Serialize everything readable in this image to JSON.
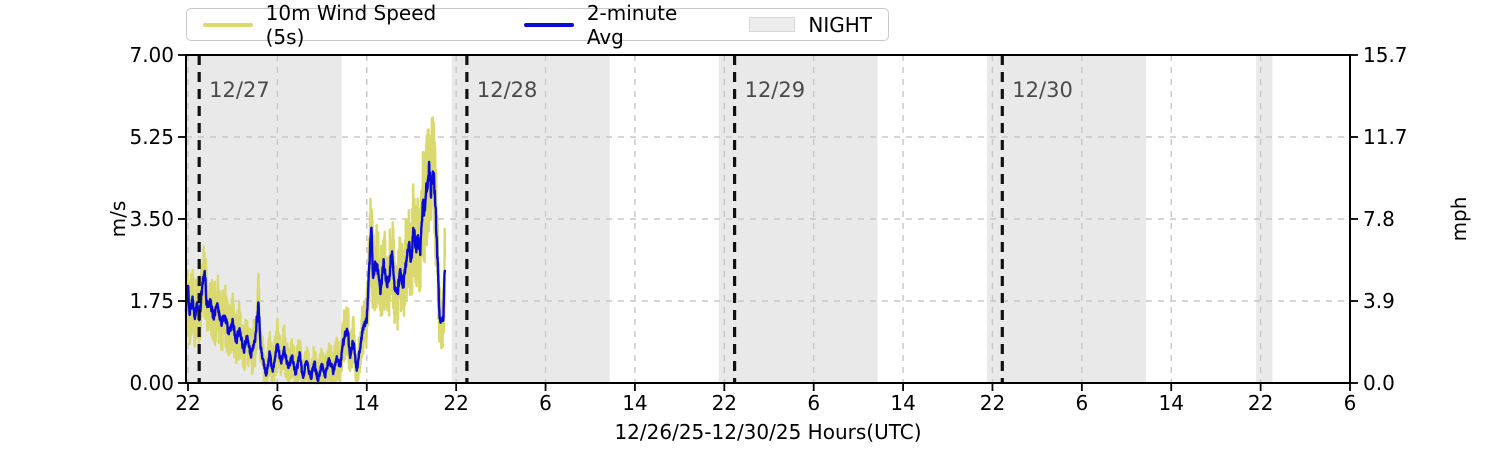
{
  "colors": {
    "raw_line": "#d9d96f",
    "avg_line": "#0b0bd8",
    "night_band": "#e9e9e9",
    "grid": "#c7c7c7",
    "date_line": "#111111",
    "date_label": "#4a4a4a",
    "axis": "#000000",
    "tick_label": "#000000",
    "legend_border": "#c9c9c9",
    "night_patch_fill": "#ececec",
    "night_patch_border": "#d8d8d8"
  },
  "legend": {
    "items": [
      {
        "label": "10m Wind Speed (5s)",
        "swatch": "line"
      },
      {
        "label": "2-minute Avg",
        "swatch": "line"
      },
      {
        "label": "NIGHT",
        "swatch": "patch"
      }
    ]
  },
  "chart_data": {
    "type": "line",
    "xlabel": "12/26/25-12/30/25  Hours(UTC)",
    "ylabel_left": "m/s",
    "ylabel_right": "mph",
    "x_unit": "hours since 12/26/25 00:00 UTC",
    "xlim": [
      21.82,
      126.0
    ],
    "ylim_left": [
      0,
      7.0
    ],
    "ylim_right": [
      0,
      15.7
    ],
    "grid": "dashed",
    "legend_position": "top-left-above-axes",
    "xticks": {
      "values": [
        22,
        30,
        38,
        46,
        54,
        62,
        70,
        78,
        86,
        94,
        102,
        110,
        118,
        126
      ],
      "labels": [
        "22",
        "6",
        "14",
        "22",
        "6",
        "14",
        "22",
        "6",
        "14",
        "22",
        "6",
        "14",
        "22",
        "6"
      ]
    },
    "yticks_left": {
      "values": [
        0,
        1.75,
        3.5,
        5.25,
        7.0
      ],
      "labels": [
        "0.00",
        "1.75",
        "3.50",
        "5.25",
        "7.00"
      ]
    },
    "yticks_right": {
      "values": [
        0,
        1.75,
        3.5,
        5.25,
        7.0
      ],
      "labels": [
        "0.0",
        "3.9",
        "7.8",
        "11.7",
        "15.7"
      ]
    },
    "hgrid_values": [
      1.75,
      3.5,
      5.25
    ],
    "night_bands": [
      [
        21.82,
        35.75
      ],
      [
        45.6,
        59.75
      ],
      [
        69.5,
        83.72
      ],
      [
        93.5,
        107.75
      ],
      [
        117.6,
        119.05
      ]
    ],
    "day_lines": [
      {
        "t": 23.0,
        "label": "12/27"
      },
      {
        "t": 46.96,
        "label": "12/28"
      },
      {
        "t": 70.92,
        "label": "12/29"
      },
      {
        "t": 94.88,
        "label": "12/30"
      }
    ],
    "series": [
      {
        "name": "10m Wind Speed (5s)",
        "role": "raw",
        "derived_from": "avg_keypoints",
        "noise_amp_base": 0.35,
        "noise_amp_per_value": 0.22,
        "seed": 11,
        "max_observed": 5.8
      },
      {
        "name": "2-minute Avg",
        "role": "avg",
        "noise_amp_base": 0.08,
        "noise_amp_per_value": 0.04,
        "seed": 3,
        "keypoints": [
          [
            21.82,
            1.6
          ],
          [
            22.0,
            2.05
          ],
          [
            22.15,
            1.45
          ],
          [
            22.4,
            1.85
          ],
          [
            22.6,
            1.35
          ],
          [
            22.8,
            1.75
          ],
          [
            23.0,
            1.35
          ],
          [
            23.3,
            2.1
          ],
          [
            23.5,
            2.4
          ],
          [
            23.7,
            1.6
          ],
          [
            24.0,
            1.75
          ],
          [
            24.3,
            1.35
          ],
          [
            24.6,
            1.7
          ],
          [
            25.0,
            1.25
          ],
          [
            25.3,
            1.5
          ],
          [
            25.6,
            1.05
          ],
          [
            26.0,
            1.3
          ],
          [
            26.3,
            0.9
          ],
          [
            26.6,
            1.15
          ],
          [
            27.0,
            0.7
          ],
          [
            27.3,
            1.0
          ],
          [
            27.6,
            0.6
          ],
          [
            28.0,
            0.9
          ],
          [
            28.3,
            1.7
          ],
          [
            28.5,
            0.8
          ],
          [
            28.8,
            0.35
          ],
          [
            29.0,
            0.15
          ],
          [
            29.3,
            0.65
          ],
          [
            29.6,
            0.25
          ],
          [
            30.0,
            0.85
          ],
          [
            30.3,
            0.45
          ],
          [
            30.6,
            0.75
          ],
          [
            31.0,
            0.3
          ],
          [
            31.3,
            0.6
          ],
          [
            31.6,
            0.2
          ],
          [
            32.0,
            0.6
          ],
          [
            32.3,
            0.1
          ],
          [
            32.6,
            0.5
          ],
          [
            33.0,
            0.1
          ],
          [
            33.3,
            0.45
          ],
          [
            33.6,
            0.05
          ],
          [
            34.0,
            0.4
          ],
          [
            34.3,
            0.15
          ],
          [
            34.6,
            0.5
          ],
          [
            35.0,
            0.25
          ],
          [
            35.3,
            0.55
          ],
          [
            35.6,
            0.35
          ],
          [
            36.0,
            1.05
          ],
          [
            36.3,
            1.15
          ],
          [
            36.5,
            0.55
          ],
          [
            36.8,
            0.9
          ],
          [
            37.1,
            0.25
          ],
          [
            37.4,
            0.75
          ],
          [
            37.7,
            1.25
          ],
          [
            38.0,
            1.35
          ],
          [
            38.25,
            2.6
          ],
          [
            38.4,
            3.35
          ],
          [
            38.55,
            2.3
          ],
          [
            38.8,
            2.5
          ],
          [
            39.0,
            2.45
          ],
          [
            39.2,
            1.95
          ],
          [
            39.5,
            2.55
          ],
          [
            39.8,
            2.1
          ],
          [
            40.0,
            2.25
          ],
          [
            40.25,
            2.85
          ],
          [
            40.5,
            2.0
          ],
          [
            40.75,
            1.9
          ],
          [
            41.0,
            2.4
          ],
          [
            41.25,
            2.05
          ],
          [
            41.5,
            2.6
          ],
          [
            41.75,
            2.95
          ],
          [
            42.0,
            2.65
          ],
          [
            42.2,
            3.35
          ],
          [
            42.4,
            2.9
          ],
          [
            42.6,
            3.1
          ],
          [
            42.8,
            2.8
          ],
          [
            43.0,
            3.85
          ],
          [
            43.2,
            3.6
          ],
          [
            43.4,
            4.25
          ],
          [
            43.6,
            4.65
          ],
          [
            43.75,
            4.1
          ],
          [
            43.9,
            4.55
          ],
          [
            44.05,
            4.3
          ],
          [
            44.2,
            3.5
          ],
          [
            44.35,
            2.55
          ],
          [
            44.5,
            1.45
          ],
          [
            44.7,
            1.3
          ],
          [
            44.85,
            1.4
          ],
          [
            45.0,
            2.6
          ]
        ]
      }
    ]
  }
}
